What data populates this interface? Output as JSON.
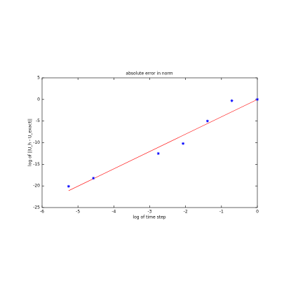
{
  "chart_data": {
    "type": "scatter",
    "title": "absolute error in norm",
    "x_label": "log of time step",
    "y_label": "log of ||U_h - U_exact||",
    "x": [
      -5.26,
      -4.57,
      -2.76,
      -2.07,
      -1.39,
      -0.71,
      0
    ],
    "values": [
      -20.1,
      -18.2,
      -12.5,
      -10.2,
      -5.0,
      -0.3,
      0
    ],
    "color": "#0000ff",
    "fit_line": {
      "x": [
        -5.26,
        0
      ],
      "values": [
        -21.1,
        0
      ],
      "color": "#ff0000"
    },
    "xlim": [
      -6,
      0
    ],
    "xticks": [
      -6,
      -5,
      -4,
      -3,
      -2,
      -1,
      0
    ],
    "ylim": [
      -25,
      5
    ],
    "yticks": [
      -25,
      -20,
      -15,
      -10,
      -5,
      0,
      5
    ],
    "grid": false
  }
}
